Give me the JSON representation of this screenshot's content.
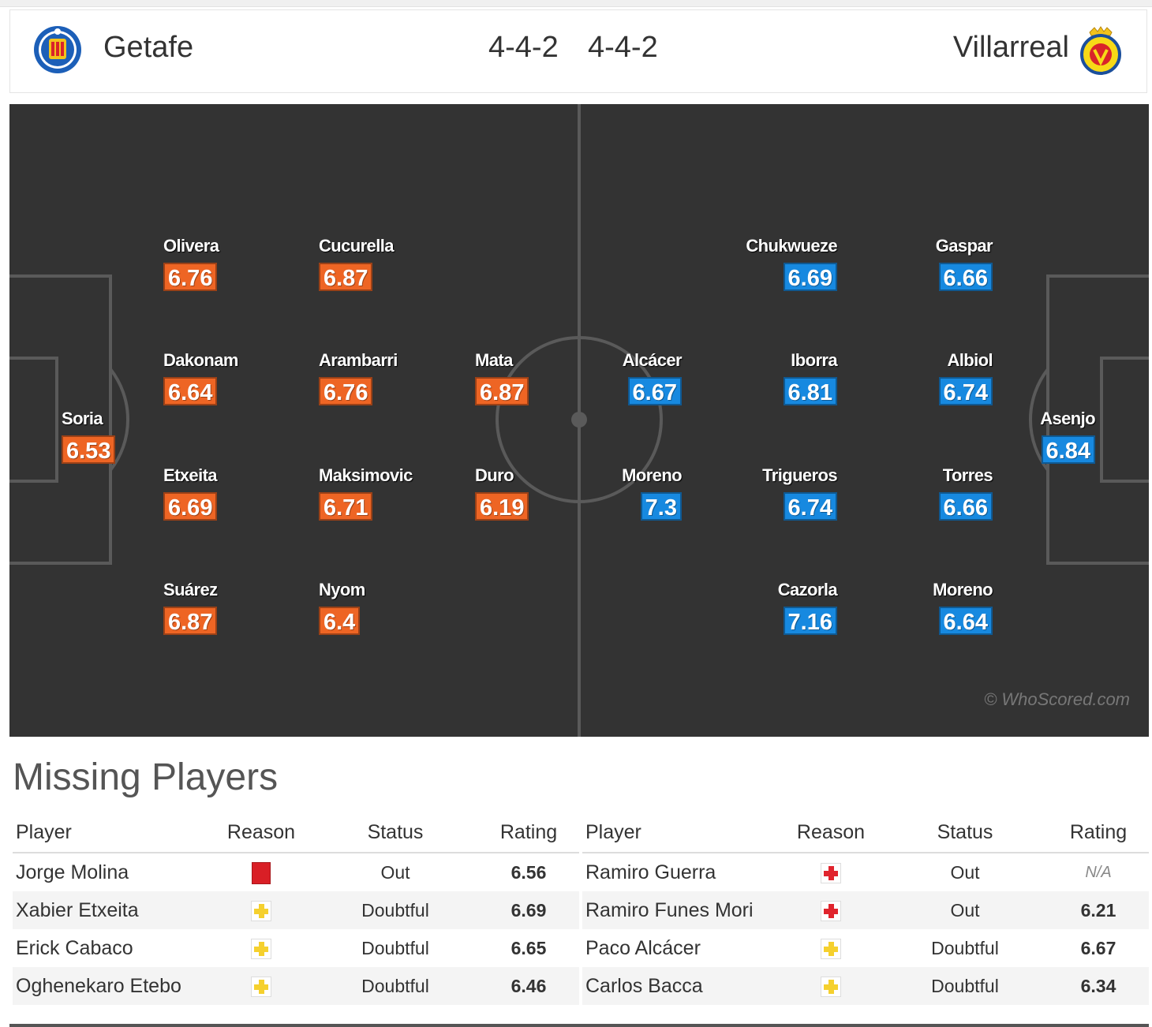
{
  "header": {
    "home_team": "Getafe",
    "away_team": "Villarreal",
    "home_formation": "4-4-2",
    "away_formation": "4-4-2",
    "home_crest": "getafe-crest",
    "away_crest": "villarreal-crest"
  },
  "colors": {
    "home_rating": "#ee6524",
    "away_rating": "#1789e0",
    "pitch": "#333333"
  },
  "pitch": {
    "watermark": "© WhoScored.com",
    "home_players": [
      {
        "name": "Soria",
        "rating": "6.53"
      },
      {
        "name": "Olivera",
        "rating": "6.76"
      },
      {
        "name": "Dakonam",
        "rating": "6.64"
      },
      {
        "name": "Etxeita",
        "rating": "6.69"
      },
      {
        "name": "Suárez",
        "rating": "6.87"
      },
      {
        "name": "Cucurella",
        "rating": "6.87"
      },
      {
        "name": "Arambarri",
        "rating": "6.76"
      },
      {
        "name": "Maksimovic",
        "rating": "6.71"
      },
      {
        "name": "Nyom",
        "rating": "6.4"
      },
      {
        "name": "Mata",
        "rating": "6.87"
      },
      {
        "name": "Duro",
        "rating": "6.19"
      }
    ],
    "away_players": [
      {
        "name": "Asenjo",
        "rating": "6.84"
      },
      {
        "name": "Gaspar",
        "rating": "6.66"
      },
      {
        "name": "Albiol",
        "rating": "6.74"
      },
      {
        "name": "Torres",
        "rating": "6.66"
      },
      {
        "name": "Moreno",
        "rating": "6.64"
      },
      {
        "name": "Chukwueze",
        "rating": "6.69"
      },
      {
        "name": "Iborra",
        "rating": "6.81"
      },
      {
        "name": "Trigueros",
        "rating": "6.74"
      },
      {
        "name": "Cazorla",
        "rating": "7.16"
      },
      {
        "name": "Alcácer",
        "rating": "6.67"
      },
      {
        "name": "Moreno",
        "rating": "7.3"
      }
    ]
  },
  "missing": {
    "title": "Missing Players",
    "columns": [
      "Player",
      "Reason",
      "Status",
      "Rating"
    ],
    "home": [
      {
        "player": "Jorge Molina",
        "reason": "red-card-icon",
        "status": "Out",
        "rating": "6.56"
      },
      {
        "player": "Xabier Etxeita",
        "reason": "doubtful-icon",
        "status": "Doubtful",
        "rating": "6.69"
      },
      {
        "player": "Erick Cabaco",
        "reason": "doubtful-icon",
        "status": "Doubtful",
        "rating": "6.65"
      },
      {
        "player": "Oghenekaro Etebo",
        "reason": "doubtful-icon",
        "status": "Doubtful",
        "rating": "6.46"
      }
    ],
    "away": [
      {
        "player": "Ramiro Guerra",
        "reason": "injury-icon",
        "status": "Out",
        "rating": "N/A"
      },
      {
        "player": "Ramiro Funes Mori",
        "reason": "injury-icon",
        "status": "Out",
        "rating": "6.21"
      },
      {
        "player": "Paco Alcácer",
        "reason": "doubtful-icon",
        "status": "Doubtful",
        "rating": "6.67"
      },
      {
        "player": "Carlos Bacca",
        "reason": "doubtful-icon",
        "status": "Doubtful",
        "rating": "6.34"
      }
    ]
  }
}
